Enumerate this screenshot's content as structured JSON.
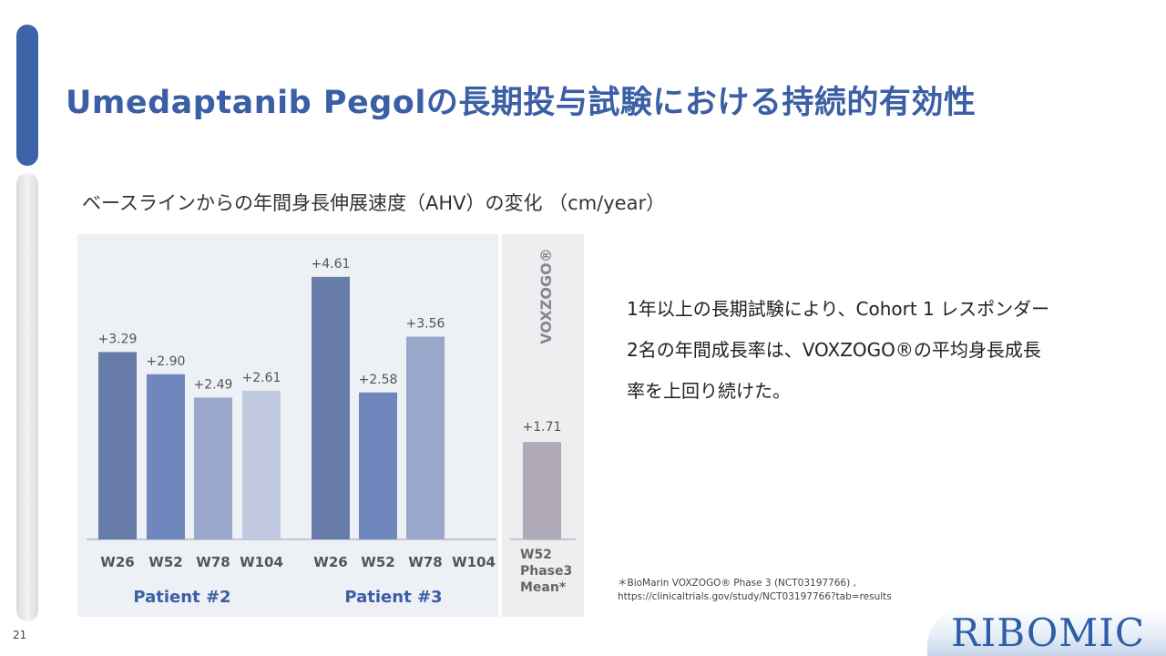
{
  "page_number": "21",
  "title": "Umedaptanib Pegolの長期投与試験における持続的有効性",
  "subtitle": "ベースラインからの年間身長伸展速度（AHV）の変化 （cm/year）",
  "summary": {
    "line1": "1年以上の長期試験により、Cohort 1 レスポンダー",
    "line2": "2名の年間成長率は、VOXZOGO®の平均身長成長",
    "line3": "率を上回り続けた。"
  },
  "footnote": {
    "line1": "＊BioMarin VOXZOGO® Phase 3 (NCT03197766) ,",
    "line2": "https://clinicaltrials.gov/study/NCT03197766?tab=results"
  },
  "logo": {
    "text": "RIBOMIC"
  },
  "colors": {
    "title": "#3b5fa4",
    "accent_bar": "#3f63a8",
    "bar_shades": [
      "#687ca9",
      "#6f87bd",
      "#98a7ca",
      "#c0c9e0"
    ],
    "reference_bar": "#b0a9b8"
  },
  "chart_data": {
    "type": "bar",
    "ylim": [
      0,
      5
    ],
    "groups": [
      {
        "name": "Patient #2",
        "categories": [
          "W26",
          "W52",
          "W78",
          "W104"
        ],
        "values": [
          3.29,
          2.9,
          2.49,
          2.61
        ],
        "labels": [
          "+3.29",
          "+2.90",
          "+2.49",
          "+2.61"
        ]
      },
      {
        "name": "Patient #3",
        "categories": [
          "W26",
          "W52",
          "W78",
          "W104"
        ],
        "values": [
          4.61,
          2.58,
          3.56,
          null
        ],
        "labels": [
          "+4.61",
          "+2.58",
          "+3.56",
          ""
        ]
      },
      {
        "name": "VOXZOGO®",
        "categories": [
          "W52\nPhase3\nMean*"
        ],
        "values": [
          1.71
        ],
        "labels": [
          "+1.71"
        ]
      }
    ]
  }
}
